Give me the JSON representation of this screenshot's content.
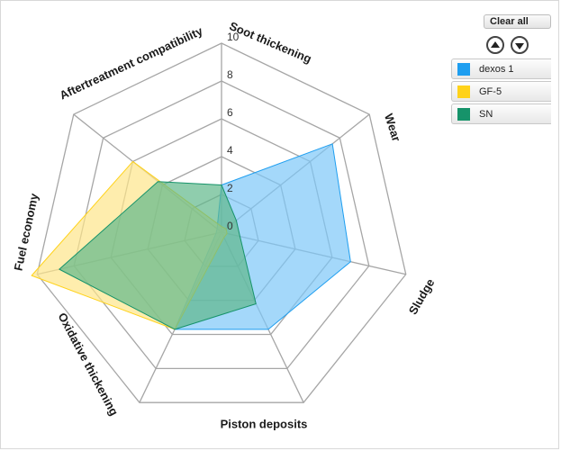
{
  "controls": {
    "clear_all": "Clear all"
  },
  "legend": [
    {
      "label": "dexos 1",
      "color": "#1e9ef0"
    },
    {
      "label": "GF-5",
      "color": "#ffd21a"
    },
    {
      "label": "SN",
      "color": "#16936a"
    }
  ],
  "chart_data": {
    "type": "radar",
    "axes": [
      "Soot thickening",
      "Wear",
      "Sludge",
      "Piston deposits",
      "Oxidative thickening",
      "Fuel economy",
      "Aftertreatment compatibility"
    ],
    "rlim": [
      0,
      10
    ],
    "ticks": [
      "0",
      "2",
      "4",
      "6",
      "8",
      "10"
    ],
    "series": [
      {
        "name": "dexos 1",
        "color": "#1e9ef0",
        "fill": "#7ec8f8",
        "values": [
          2.5,
          7.5,
          7.0,
          5.7,
          5.7,
          0.3,
          0.3
        ]
      },
      {
        "name": "GF-5",
        "color": "#ffd21a",
        "fill": "#fde68a",
        "values": [
          0.3,
          0.3,
          0.3,
          0.3,
          5.7,
          10.3,
          6.0
        ]
      },
      {
        "name": "SN",
        "color": "#16936a",
        "fill": "#5fb88a",
        "values": [
          2.5,
          1.0,
          1.0,
          4.2,
          5.7,
          8.8,
          4.3
        ]
      }
    ]
  }
}
